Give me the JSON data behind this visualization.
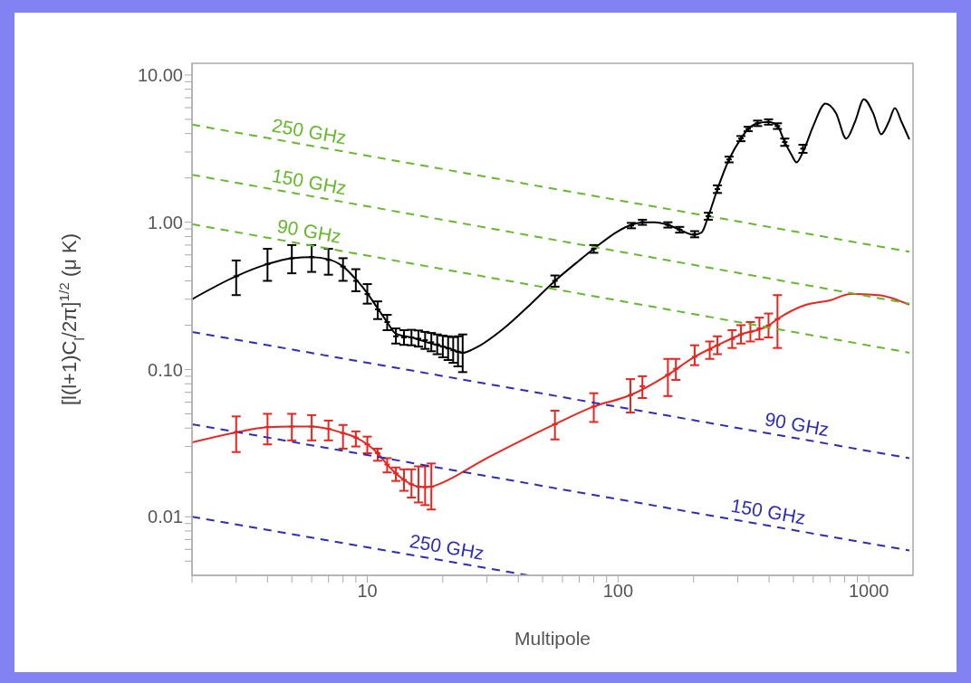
{
  "chart_data": {
    "type": "line",
    "xlabel": "Multipole",
    "ylabel": "[l(l+1)C$_{l}$/2π]$^{1/2}$ (μ K)",
    "log": "xy",
    "line_style": "solid",
    "xlim": [
      2,
      1500
    ],
    "ylim": [
      0.004,
      12
    ],
    "xticks": [
      {
        "value": 2,
        "label": null
      },
      {
        "value": 3,
        "label": null
      },
      {
        "value": 4,
        "label": null
      },
      {
        "value": 5,
        "label": null
      },
      {
        "value": 6,
        "label": null
      },
      {
        "value": 7,
        "label": null
      },
      {
        "value": 8,
        "label": null
      },
      {
        "value": 9,
        "label": null
      },
      10,
      {
        "value": 20,
        "label": null
      },
      {
        "value": 30,
        "label": null
      },
      {
        "value": 40,
        "label": null
      },
      {
        "value": 50,
        "label": null
      },
      {
        "value": 60,
        "label": null
      },
      {
        "value": 70,
        "label": null
      },
      {
        "value": 80,
        "label": null
      },
      {
        "value": 90,
        "label": null
      },
      100,
      {
        "value": 200,
        "label": null
      },
      {
        "value": 300,
        "label": null
      },
      {
        "value": 400,
        "label": null
      },
      {
        "value": 500,
        "label": null
      },
      {
        "value": 600,
        "label": null
      },
      {
        "value": 700,
        "label": null
      },
      {
        "value": 800,
        "label": null
      },
      {
        "value": 900,
        "label": null
      },
      1000
    ],
    "yticks": [
      {
        "value": 0.005,
        "label": null
      },
      {
        "value": 0.006,
        "label": null
      },
      {
        "value": 0.007,
        "label": null
      },
      {
        "value": 0.008,
        "label": null
      },
      {
        "value": 0.009,
        "label": null
      },
      {
        "value": 0.01,
        "label": "0.01"
      },
      {
        "value": 0.02,
        "label": null
      },
      {
        "value": 0.03,
        "label": null
      },
      {
        "value": 0.04,
        "label": null
      },
      {
        "value": 0.05,
        "label": null
      },
      {
        "value": 0.06,
        "label": null
      },
      {
        "value": 0.07,
        "label": null
      },
      {
        "value": 0.08,
        "label": null
      },
      {
        "value": 0.09,
        "label": null
      },
      {
        "value": 0.1,
        "label": "0.10"
      },
      {
        "value": 0.2,
        "label": null
      },
      {
        "value": 0.3,
        "label": null
      },
      {
        "value": 0.4,
        "label": null
      },
      {
        "value": 0.5,
        "label": null
      },
      {
        "value": 0.6,
        "label": null
      },
      {
        "value": 0.7,
        "label": null
      },
      {
        "value": 0.8,
        "label": null
      },
      {
        "value": 0.9,
        "label": null
      },
      {
        "value": 1,
        "label": "1.00"
      },
      {
        "value": 2,
        "label": null
      },
      {
        "value": 3,
        "label": null
      },
      {
        "value": 4,
        "label": null
      },
      {
        "value": 5,
        "label": null
      },
      {
        "value": 6,
        "label": null
      },
      {
        "value": 7,
        "label": null
      },
      {
        "value": 8,
        "label": null
      },
      {
        "value": 9,
        "label": null
      },
      {
        "value": 10,
        "label": "10.00"
      }
    ],
    "series": [
      {
        "color": "#000000",
        "x": [
          2,
          3,
          4,
          5,
          6,
          7,
          8,
          9,
          10,
          11,
          12,
          13,
          15,
          18,
          21,
          24,
          27,
          35,
          45,
          56,
          70,
          80,
          100,
          113,
          125,
          140,
          158,
          176,
          200,
          215,
          229,
          249,
          277,
          309,
          330,
          360,
          398,
          432,
          462,
          490,
          515,
          546,
          600,
          671,
          740,
          812,
          880,
          955,
          1040,
          1120,
          1200,
          1270,
          1350,
          1450
        ],
        "values": [
          0.3,
          0.43,
          0.52,
          0.57,
          0.58,
          0.56,
          0.5,
          0.41,
          0.33,
          0.26,
          0.21,
          0.175,
          0.165,
          0.15,
          0.14,
          0.13,
          0.14,
          0.19,
          0.28,
          0.4,
          0.55,
          0.66,
          0.87,
          0.96,
          1.0,
          1.0,
          0.96,
          0.89,
          0.82,
          0.85,
          1.1,
          1.68,
          2.67,
          3.7,
          4.3,
          4.7,
          4.8,
          4.5,
          3.5,
          2.9,
          2.55,
          3.0,
          4.5,
          6.4,
          5.5,
          3.7,
          4.8,
          6.85,
          5.5,
          3.96,
          4.8,
          5.95,
          4.8,
          3.65
        ]
      },
      {
        "type": "scatter",
        "color": "#000000",
        "x": [
          3,
          4,
          5,
          6,
          7,
          8,
          9,
          10,
          11,
          12,
          13,
          14,
          15,
          16,
          17,
          18,
          19,
          20,
          21,
          22,
          23,
          24,
          56,
          80,
          113,
          125,
          158,
          176,
          202,
          229,
          249,
          277,
          309,
          330,
          360,
          398,
          432,
          462,
          546
        ],
        "values": [
          0.43,
          0.52,
          0.57,
          0.58,
          0.555,
          0.5,
          0.4,
          0.325,
          0.256,
          0.21,
          0.168,
          0.165,
          0.165,
          0.162,
          0.158,
          0.153,
          0.148,
          0.143,
          0.139,
          0.135,
          0.132,
          0.13,
          0.4,
          0.66,
          0.95,
          1.0,
          0.96,
          0.89,
          0.83,
          1.1,
          1.68,
          2.67,
          3.7,
          4.3,
          4.7,
          4.8,
          4.5,
          3.5,
          3.16
        ],
        "errors": [
          [
            0.32,
            0.55
          ],
          [
            0.4,
            0.66
          ],
          [
            0.45,
            0.7
          ],
          [
            0.46,
            0.7
          ],
          [
            0.44,
            0.66
          ],
          [
            0.4,
            0.57
          ],
          [
            0.34,
            0.48
          ],
          [
            0.28,
            0.38
          ],
          [
            0.22,
            0.29
          ],
          [
            0.185,
            0.235
          ],
          [
            0.15,
            0.19
          ],
          [
            0.147,
            0.185
          ],
          [
            0.146,
            0.186
          ],
          [
            0.143,
            0.184
          ],
          [
            0.138,
            0.18
          ],
          [
            0.133,
            0.177
          ],
          [
            0.127,
            0.173
          ],
          [
            0.121,
            0.17
          ],
          [
            0.116,
            0.168
          ],
          [
            0.111,
            0.166
          ],
          [
            0.105,
            0.168
          ],
          [
            0.096,
            0.173
          ],
          0.035,
          0.04,
          0.04,
          0.04,
          0.04,
          0.04,
          0.04,
          0.06,
          0.1,
          0.12,
          0.15,
          0.15,
          0.2,
          0.2,
          0.2,
          0.2,
          0.2
        ]
      },
      {
        "color": "#e8251f",
        "x": [
          2,
          3,
          4,
          5,
          6,
          7,
          8,
          9,
          10,
          11,
          12,
          13,
          14,
          15,
          16,
          17,
          18,
          19,
          30,
          56,
          80,
          112,
          158,
          202,
          249,
          309,
          398,
          432,
          560,
          700,
          845,
          1090,
          1450
        ],
        "values": [
          0.032,
          0.0374,
          0.0405,
          0.041,
          0.041,
          0.0395,
          0.037,
          0.0345,
          0.031,
          0.027,
          0.0226,
          0.0197,
          0.0178,
          0.0166,
          0.016,
          0.0159,
          0.016,
          0.0165,
          0.025,
          0.0425,
          0.056,
          0.067,
          0.092,
          0.122,
          0.146,
          0.173,
          0.199,
          0.22,
          0.275,
          0.295,
          0.325,
          0.32,
          0.275
        ]
      },
      {
        "type": "scatter",
        "color": "#e8251f",
        "x": [
          3,
          4,
          5,
          6,
          7,
          8,
          9,
          10,
          11,
          12,
          13,
          14,
          15,
          16,
          17,
          18,
          56,
          80,
          112,
          125,
          158,
          170,
          202,
          232,
          249,
          285,
          309,
          337,
          366,
          398,
          432
        ],
        "values": [
          0.0374,
          0.0407,
          0.041,
          0.041,
          0.0395,
          0.037,
          0.0345,
          0.031,
          0.027,
          0.0226,
          0.0197,
          0.0178,
          0.0166,
          0.016,
          0.0159,
          0.016,
          0.0425,
          0.056,
          0.067,
          0.077,
          0.092,
          0.101,
          0.122,
          0.136,
          0.146,
          0.161,
          0.173,
          0.18,
          0.19,
          0.199,
          0.22
        ],
        "errors": [
          [
            0.0275,
            0.048
          ],
          [
            0.031,
            0.05
          ],
          [
            0.033,
            0.05
          ],
          [
            0.033,
            0.049
          ],
          [
            0.033,
            0.045
          ],
          [
            0.029,
            0.042
          ],
          [
            0.03,
            0.038
          ],
          [
            0.027,
            0.035
          ],
          [
            0.024,
            0.029
          ],
          [
            0.02,
            0.025
          ],
          [
            0.0175,
            0.0216
          ],
          [
            0.015,
            0.021
          ],
          [
            0.0135,
            0.021
          ],
          [
            0.0125,
            0.022
          ],
          [
            0.012,
            0.022
          ],
          [
            0.0112,
            0.023
          ],
          [
            0.0335,
            0.0525
          ],
          [
            0.044,
            0.069
          ],
          [
            0.051,
            0.086
          ],
          [
            0.064,
            0.09
          ],
          [
            0.066,
            0.118
          ],
          [
            0.085,
            0.118
          ],
          [
            0.107,
            0.146
          ],
          [
            0.118,
            0.155
          ],
          [
            0.127,
            0.168
          ],
          [
            0.14,
            0.185
          ],
          [
            0.15,
            0.2
          ],
          [
            0.155,
            0.21
          ],
          [
            0.16,
            0.225
          ],
          [
            0.165,
            0.24
          ],
          [
            0.14,
            0.32
          ]
        ]
      },
      {
        "type": "line",
        "name": "250 GHz",
        "color": "#66b82e",
        "line_style": "dashed",
        "x": [
          2,
          1450
        ],
        "values": [
          4.6,
          0.63
        ]
      },
      {
        "type": "line",
        "name": "150 GHz",
        "color": "#66b82e",
        "line_style": "dashed",
        "x": [
          2,
          1450
        ],
        "values": [
          2.1,
          0.28
        ]
      },
      {
        "type": "line",
        "name": "90 GHz",
        "color": "#66b82e",
        "line_style": "dashed",
        "x": [
          2,
          1450
        ],
        "values": [
          0.97,
          0.13
        ]
      },
      {
        "type": "line",
        "name": "90 GHz",
        "color": "#2d2db5",
        "line_style": "dashed",
        "x": [
          2,
          1450
        ],
        "values": [
          0.18,
          0.025
        ]
      },
      {
        "type": "line",
        "name": "150 GHz",
        "color": "#2d2db5",
        "line_style": "dashed",
        "x": [
          2,
          1450
        ],
        "values": [
          0.0425,
          0.0059
        ]
      },
      {
        "type": "line",
        "name": "250 GHz",
        "color": "#2d2db5",
        "line_style": "dashed",
        "x": [
          2,
          44
        ],
        "values": [
          0.01,
          0.004
        ]
      }
    ]
  }
}
